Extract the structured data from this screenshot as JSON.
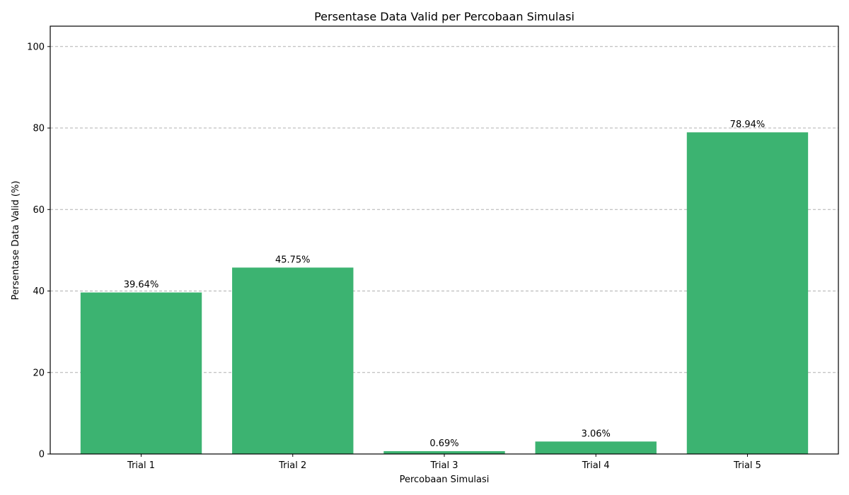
{
  "chart_data": {
    "type": "bar",
    "title": "Persentase Data Valid per Percobaan Simulasi",
    "xlabel": "Percobaan Simulasi",
    "ylabel": "Persentase Data Valid (%)",
    "categories": [
      "Trial 1",
      "Trial 2",
      "Trial 3",
      "Trial 4",
      "Trial 5"
    ],
    "values": [
      39.64,
      45.75,
      0.69,
      3.06,
      78.94
    ],
    "value_labels": [
      "39.64%",
      "45.75%",
      "0.69%",
      "3.06%",
      "78.94%"
    ],
    "ylim": [
      0,
      105
    ],
    "yticks": [
      0,
      20,
      40,
      60,
      80,
      100
    ],
    "ytick_labels": [
      "0",
      "20",
      "40",
      "60",
      "80",
      "100"
    ],
    "grid": "y-dashed",
    "bar_color": "#3cb371"
  }
}
